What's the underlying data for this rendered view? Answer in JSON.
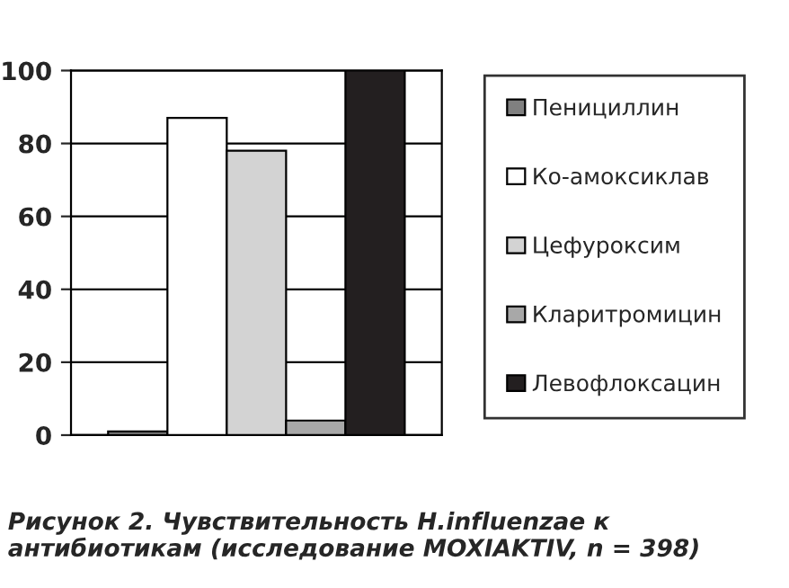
{
  "chart_data": {
    "type": "bar",
    "categories": [
      null
    ],
    "series": [
      {
        "name": "Пенициллин",
        "color": "#808080",
        "values": [
          1
        ]
      },
      {
        "name": "Ко-амоксиклав",
        "color": "#ffffff",
        "values": [
          87
        ]
      },
      {
        "name": "Цефуроксим",
        "color": "#d3d3d3",
        "values": [
          78
        ]
      },
      {
        "name": "Кларитромицин",
        "color": "#a8a8a8",
        "values": [
          4
        ]
      },
      {
        "name": "Левофлоксацин",
        "color": "#231f20",
        "values": [
          100
        ]
      }
    ],
    "ylim": [
      0,
      100
    ],
    "yticks": [
      0,
      20,
      40,
      60,
      80,
      100
    ],
    "grid": "y",
    "legend": "right",
    "annotations": [
      "Рисунок 2. Чувствительность H.influenzae к антибиотикам (исследование MOXIAKTIV, n = 398)"
    ]
  }
}
